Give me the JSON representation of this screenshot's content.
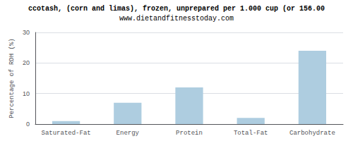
{
  "chart_data": {
    "type": "bar",
    "title": "ccotash, (corn and limas), frozen, unprepared per 1.000 cup (or 156.00",
    "subtitle": "www.dietandfitnesstoday.com",
    "categories": [
      "Saturated-Fat",
      "Energy",
      "Protein",
      "Total-Fat",
      "Carbohydrate"
    ],
    "values": [
      1.0,
      7.0,
      12.0,
      2.0,
      24.0
    ],
    "color": "#aecde0",
    "y_label": "Percentage of RDH (%)",
    "ylim": [
      0,
      30
    ],
    "yticks": [
      0,
      10,
      20,
      30
    ],
    "grid": true
  }
}
